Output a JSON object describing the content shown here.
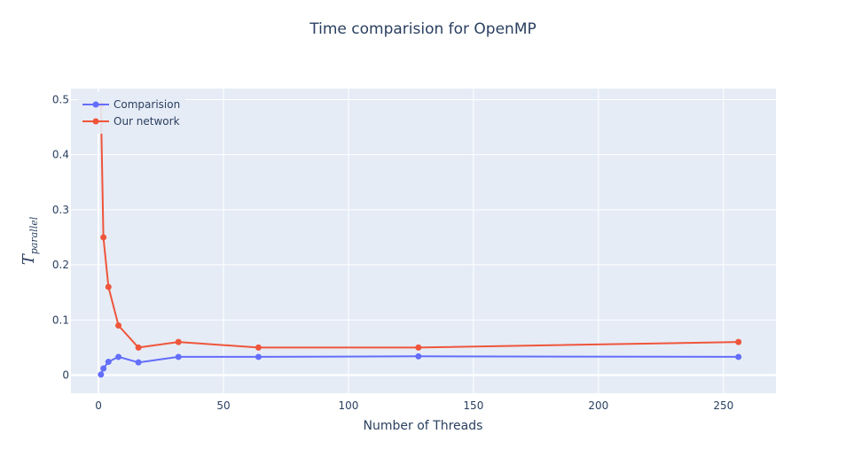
{
  "chart_data": {
    "type": "line",
    "title": "Time comparision for OpenMP",
    "xlabel": "Number of Threads",
    "ylabel": {
      "main": "T",
      "sub": "parallel"
    },
    "xlim": [
      -11,
      271
    ],
    "ylim": [
      -0.033,
      0.52
    ],
    "xticks": [
      0,
      50,
      100,
      150,
      200,
      250
    ],
    "yticks": [
      0,
      0.1,
      0.2,
      0.3,
      0.4,
      0.5
    ],
    "ytick_labels": [
      "0",
      "0.1",
      "0.2",
      "0.3",
      "0.4",
      "0.5"
    ],
    "grid": true,
    "legend_position": "top-left",
    "series": [
      {
        "name": "Comparision",
        "color": "#636efa",
        "x": [
          1,
          2,
          4,
          8,
          16,
          32,
          64,
          128,
          256
        ],
        "y": [
          0.001,
          0.012,
          0.024,
          0.033,
          0.023,
          0.033,
          0.033,
          0.034,
          0.033
        ]
      },
      {
        "name": "Our network",
        "color": "#ef553b",
        "x": [
          1,
          2,
          4,
          8,
          16,
          32,
          64,
          128,
          256
        ],
        "y": [
          0.49,
          0.25,
          0.16,
          0.09,
          0.05,
          0.06,
          0.05,
          0.05,
          0.06
        ]
      }
    ]
  },
  "colors": {
    "plot_background": "#e5ecf6",
    "grid": "#ffffff",
    "text": "#2a3f5f"
  }
}
